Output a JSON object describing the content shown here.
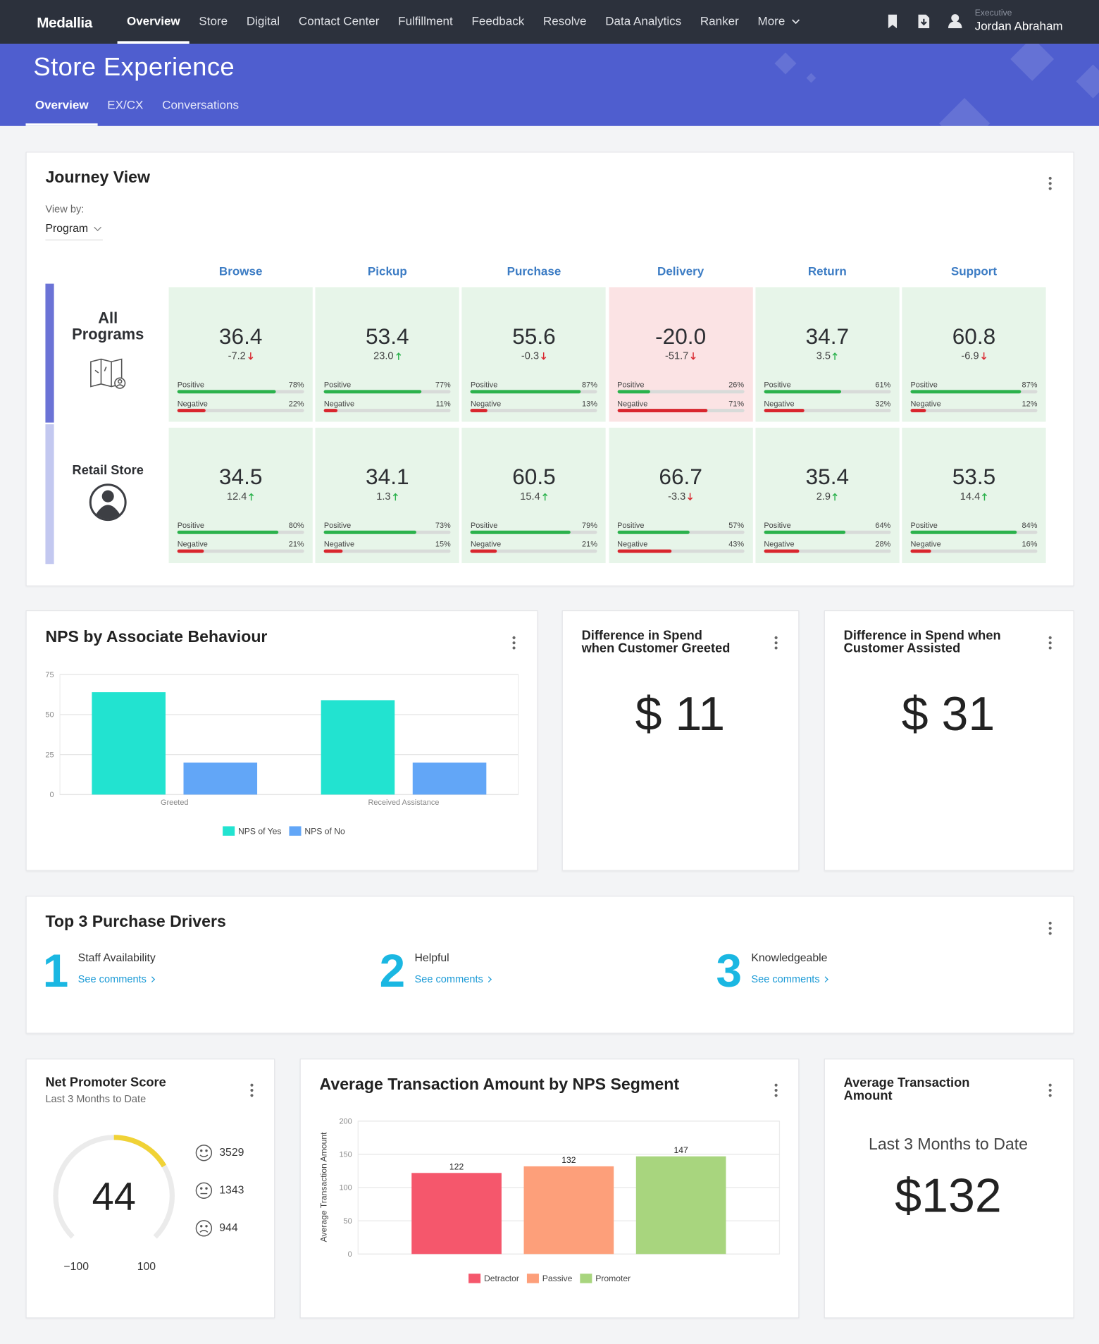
{
  "nav": {
    "brand": "Medallia",
    "items": [
      "Overview",
      "Store",
      "Digital",
      "Contact Center",
      "Fulfillment",
      "Feedback",
      "Resolve",
      "Data Analytics",
      "Ranker",
      "More"
    ],
    "user_role": "Executive",
    "user_name": "Jordan Abraham"
  },
  "header": {
    "title": "Store Experience",
    "tabs": [
      "Overview",
      "EX/CX",
      "Conversations"
    ]
  },
  "journey": {
    "title": "Journey View",
    "view_by_label": "View by:",
    "view_by": "Program",
    "positive_label": "Positive",
    "negative_label": "Negative",
    "stages": [
      "Browse",
      "Pickup",
      "Purchase",
      "Delivery",
      "Return",
      "Support"
    ],
    "rows": [
      {
        "label": "All Programs",
        "cells": [
          {
            "score": "36.4",
            "change": "-7.2",
            "positive": 78,
            "positive_label": "78%",
            "negative": 22,
            "negative_label": "22%"
          },
          {
            "score": "53.4",
            "change": "23.0",
            "positive": 77,
            "positive_label": "77%",
            "negative": 11,
            "negative_label": "11%"
          },
          {
            "score": "55.6",
            "change": "-0.3",
            "positive": 87,
            "positive_label": "87%",
            "negative": 13,
            "negative_label": "13%"
          },
          {
            "score": "-20.0",
            "change": "-51.7",
            "positive": 26,
            "positive_label": "26%",
            "negative": 71,
            "negative_label": "71%"
          },
          {
            "score": "34.7",
            "change": "3.5",
            "positive": 61,
            "positive_label": "61%",
            "negative": 32,
            "negative_label": "32%"
          },
          {
            "score": "60.8",
            "change": "-6.9",
            "positive": 87,
            "positive_label": "87%",
            "negative": 12,
            "negative_label": "12%"
          }
        ]
      },
      {
        "label": "Retail Store",
        "cells": [
          {
            "score": "34.5",
            "change": "12.4",
            "positive": 80,
            "positive_label": "80%",
            "negative": 21,
            "negative_label": "21%"
          },
          {
            "score": "34.1",
            "change": "1.3",
            "positive": 73,
            "positive_label": "73%",
            "negative": 15,
            "negative_label": "15%"
          },
          {
            "score": "60.5",
            "change": "15.4",
            "positive": 79,
            "positive_label": "79%",
            "negative": 21,
            "negative_label": "21%"
          },
          {
            "score": "66.7",
            "change": "-3.3",
            "positive": 57,
            "positive_label": "57%",
            "negative": 43,
            "negative_label": "43%"
          },
          {
            "score": "35.4",
            "change": "2.9",
            "positive": 64,
            "positive_label": "64%",
            "negative": 28,
            "negative_label": "28%"
          },
          {
            "score": "53.5",
            "change": "14.4",
            "positive": 84,
            "positive_label": "84%",
            "negative": 16,
            "negative_label": "16%"
          }
        ]
      }
    ]
  },
  "spend_greeted": {
    "title": "Difference in Spend when Customer Greeted",
    "value": "$ 11"
  },
  "spend_assisted": {
    "title": "Difference in Spend when Customer Assisted",
    "value": "$ 31"
  },
  "drivers": {
    "title": "Top 3 Purchase Drivers",
    "items": [
      {
        "rank": 1,
        "name": "Staff Availability",
        "link": "See comments"
      },
      {
        "rank": 2,
        "name": "Helpful",
        "link": "See comments"
      },
      {
        "rank": 3,
        "name": "Knowledgeable",
        "link": "See comments"
      }
    ]
  },
  "nps_score": {
    "title": "Net Promoter Score",
    "subtitle": "Last 3 Months to Date",
    "score": 44,
    "min": {
      "value": -100,
      "label": "−100"
    },
    "max": 100,
    "promoters": 3529,
    "passives": 1343,
    "detractors": 944,
    "color": "#f0d236"
  },
  "avg_amount": {
    "title": "Average Transaction Amount",
    "subtitle": "Last 3 Months to Date",
    "value": "$132"
  },
  "chart_data": [
    {
      "type": "bar",
      "title": "NPS by Associate Behaviour",
      "categories": [
        "Greeted",
        "Received Assistance"
      ],
      "series": [
        {
          "name": "NPS of Yes",
          "color": "#22e3d0",
          "values": [
            64,
            59
          ]
        },
        {
          "name": "NPS of No",
          "color": "#62a6f7",
          "values": [
            20,
            20
          ]
        }
      ],
      "ylim": [
        0,
        75
      ],
      "yticks": [
        0,
        25,
        50,
        75
      ],
      "grid": true
    },
    {
      "type": "bar",
      "title": "Average Transaction Amount by NPS Segment",
      "y_label": "Average Transaction Amount",
      "categories": [
        null
      ],
      "series": [
        {
          "name": "Detractor",
          "color": "#f5576c",
          "values": [
            122
          ]
        },
        {
          "name": "Passive",
          "color": "#fd9f7a",
          "values": [
            132
          ]
        },
        {
          "name": "Promoter",
          "color": "#a8d57e",
          "values": [
            147
          ]
        }
      ],
      "ylim": [
        0,
        200
      ],
      "yticks": [
        0,
        50,
        100,
        150,
        200
      ],
      "grid": true
    }
  ]
}
